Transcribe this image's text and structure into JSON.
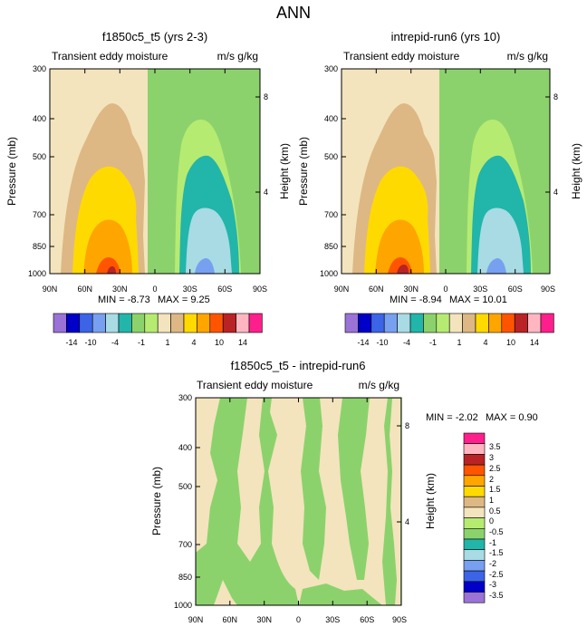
{
  "page_title": "ANN",
  "contour_colors": [
    "#9b72d6",
    "#0000c8",
    "#3c64e6",
    "#78a0f0",
    "#a8dbe3",
    "#22b5aa",
    "#8cd26c",
    "#b6eb72",
    "#f3e4bd",
    "#ddb884",
    "#ffda00",
    "#ffa500",
    "#ff5500",
    "#b92325",
    "#ffb6c1",
    "#ff1f8c"
  ],
  "chart_data": [
    {
      "type": "heatmap",
      "title": "f1850c5_t5 (yrs 2-3)",
      "left_label": "Transient eddy moisture",
      "right_label": "m/s g/kg",
      "ylabel": "Pressure (mb)",
      "ylabel_right": "Height (km)",
      "x_tick_labels": [
        "90N",
        "60N",
        "30N",
        "0",
        "30S",
        "60S",
        "90S"
      ],
      "y_tick_labels": [
        "300",
        "400",
        "500",
        "700",
        "850",
        "1000"
      ],
      "y_right_tick_labels": [
        "8",
        "4"
      ],
      "x_range": [
        "90N",
        "90S"
      ],
      "y_range_mb": [
        1000,
        300
      ],
      "min_label": "MIN = -8.73",
      "max_label": "MAX =  9.25",
      "min": -8.73,
      "max": 9.25
    },
    {
      "type": "heatmap",
      "title": "intrepid-run6 (yrs 10)",
      "left_label": "Transient eddy moisture",
      "right_label": "m/s g/kg",
      "ylabel": "Pressure (mb)",
      "ylabel_right": "Height (km)",
      "x_tick_labels": [
        "90N",
        "60N",
        "30N",
        "0",
        "30S",
        "60S",
        "90S"
      ],
      "y_tick_labels": [
        "300",
        "400",
        "500",
        "700",
        "850",
        "1000"
      ],
      "y_right_tick_labels": [
        "8",
        "4"
      ],
      "x_range": [
        "90N",
        "90S"
      ],
      "y_range_mb": [
        1000,
        300
      ],
      "min_label": "MIN = -8.94",
      "max_label": "MAX = 10.01",
      "min": -8.94,
      "max": 10.01
    },
    {
      "type": "heatmap",
      "title": "f1850c5_t5 - intrepid-run6",
      "left_label": "Transient eddy moisture",
      "right_label": "m/s g/kg",
      "ylabel": "Pressure (mb)",
      "ylabel_right": "Height (km)",
      "x_tick_labels": [
        "90N",
        "60N",
        "30N",
        "0",
        "30S",
        "60S",
        "90S"
      ],
      "y_tick_labels": [
        "300",
        "400",
        "500",
        "700",
        "850",
        "1000"
      ],
      "y_right_tick_labels": [
        "8",
        "4"
      ],
      "x_range": [
        "90N",
        "90S"
      ],
      "y_range_mb": [
        1000,
        300
      ],
      "min_label": "MIN =  -2.02",
      "max_label": "MAX =   0.90",
      "min": -2.02,
      "max": 0.9
    }
  ],
  "colorbar_top": {
    "labels": [
      "-14",
      "-10",
      "-4",
      "-1",
      "1",
      "4",
      "10",
      "14"
    ],
    "levels": [
      -14,
      -12,
      -10,
      -8,
      -4,
      -2,
      -1,
      0,
      1,
      2,
      4,
      8,
      10,
      12,
      14
    ]
  },
  "colorbar_diff": {
    "labels": [
      "3.5",
      "3",
      "2.5",
      "2",
      "1.5",
      "1",
      "0.5",
      "0",
      "-0.5",
      "-1",
      "-1.5",
      "-2",
      "-2.5",
      "-3",
      "-3.5"
    ],
    "levels": [
      3.5,
      3,
      2.5,
      2,
      1.5,
      1,
      0.5,
      0,
      -0.5,
      -1,
      -1.5,
      -2,
      -2.5,
      -3,
      -3.5
    ]
  }
}
